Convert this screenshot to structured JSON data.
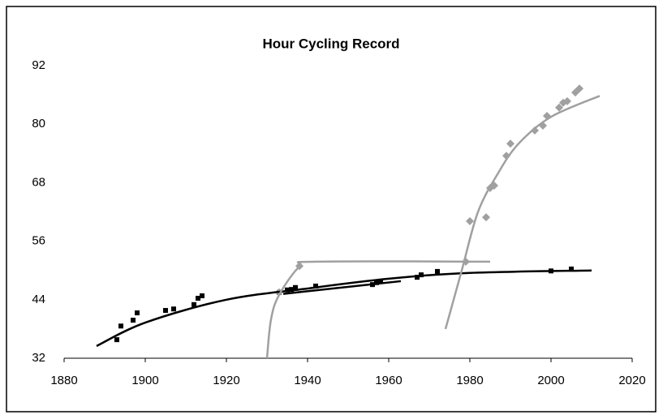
{
  "chart_data": {
    "type": "scatter",
    "title": "Hour Cycling Record",
    "xlim": [
      1880,
      2020
    ],
    "xticks": [
      1880,
      1900,
      1920,
      1940,
      1960,
      1980,
      2000,
      2020
    ],
    "ylim": [
      32,
      92
    ],
    "yticks": [
      32,
      44,
      56,
      68,
      80,
      92
    ],
    "series": [
      {
        "mode": "markers",
        "marker": "square",
        "color": "#000000",
        "x": [
          1893,
          1894,
          1897,
          1898,
          1905,
          1907,
          1912,
          1913,
          1914,
          1933,
          1935,
          1936,
          1937,
          1942,
          1956,
          1957,
          1958,
          1967,
          1968,
          1972,
          2000,
          2005
        ],
        "values": [
          35.8,
          38.6,
          39.8,
          41.3,
          41.8,
          42.1,
          43.0,
          44.3,
          44.8,
          45.5,
          46.0,
          46.1,
          46.5,
          46.8,
          47.1,
          47.5,
          47.8,
          48.6,
          49.1,
          49.8,
          49.9,
          50.3
        ]
      },
      {
        "mode": "markers",
        "marker": "diamond",
        "color": "#a0a0a0",
        "x": [
          1933,
          1938,
          1979,
          1980,
          1984,
          1985,
          1986,
          1989,
          1990,
          1996,
          1998,
          1999,
          2002,
          2003,
          2004,
          2006,
          2007
        ],
        "values": [
          45.5,
          50.9,
          51.8,
          60.1,
          60.9,
          66.9,
          67.4,
          73.5,
          76.0,
          78.7,
          79.7,
          81.7,
          83.4,
          84.4,
          84.7,
          86.5,
          87.3
        ]
      },
      {
        "mode": "line",
        "color": "#000000",
        "x": [
          1888,
          1900,
          1920,
          1940,
          1960,
          1980,
          2010
        ],
        "values": [
          34.5,
          39.3,
          44.0,
          46.3,
          48.3,
          49.5,
          50.0
        ]
      },
      {
        "mode": "line",
        "color": "#000000",
        "x": [
          1934,
          1963
        ],
        "values": [
          45.2,
          47.8
        ]
      },
      {
        "mode": "line",
        "color": "#a0a0a0",
        "x": [
          1930,
          1931,
          1933,
          1938,
          1942,
          1985
        ],
        "values": [
          32,
          40,
          45,
          50.8,
          51.8,
          51.8
        ]
      },
      {
        "mode": "line",
        "color": "#a0a0a0",
        "x": [
          1974,
          1978,
          1982,
          1987,
          1992,
          2000,
          2012
        ],
        "values": [
          38,
          50,
          62,
          70,
          76,
          81.5,
          85.8
        ]
      }
    ]
  }
}
